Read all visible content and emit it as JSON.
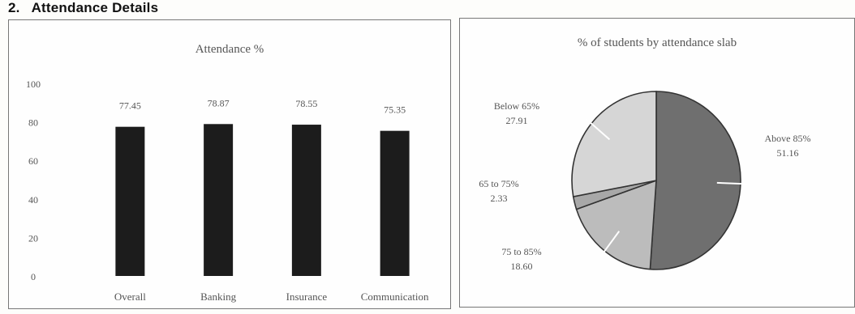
{
  "section": {
    "number": "2.",
    "title": "Attendance Details"
  },
  "chart_data": [
    {
      "type": "bar",
      "title": "Attendance %",
      "categories": [
        "Overall",
        "Banking",
        "Insurance",
        "Communication"
      ],
      "values": [
        77.45,
        78.87,
        78.55,
        75.35
      ],
      "value_labels": [
        "77.45",
        "78.87",
        "78.55",
        "75.35"
      ],
      "y_ticks": [
        "100",
        "80",
        "60",
        "40",
        "20",
        "0"
      ],
      "ylim": [
        0,
        100
      ],
      "grid": false,
      "bar_color": "#1c1c1c"
    },
    {
      "type": "pie",
      "title": "% of students by attendance slab",
      "slices": [
        {
          "label": "Above 85%",
          "value": 51.16,
          "value_label": "51.16",
          "color": "#6f6f6f"
        },
        {
          "label": "75 to 85%",
          "value": 18.6,
          "value_label": "18.60",
          "color": "#bcbcbc"
        },
        {
          "label": "65 to 75%",
          "value": 2.33,
          "value_label": "2.33",
          "color": "#a8a8a8"
        },
        {
          "label": "Below 65%",
          "value": 27.91,
          "value_label": "27.91",
          "color": "#d6d6d6"
        }
      ]
    }
  ]
}
